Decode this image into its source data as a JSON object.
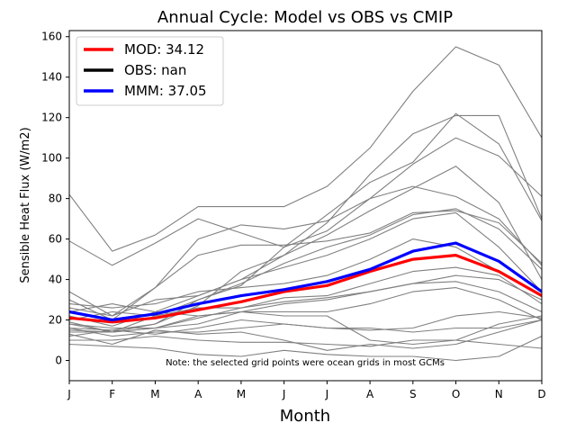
{
  "chart_data": {
    "type": "line",
    "title": "Annual Cycle: Model vs OBS vs CMIP",
    "xlabel": "Month",
    "ylabel": "Sensible Heat Flux (W/m2)",
    "categories": [
      "J",
      "F",
      "M",
      "A",
      "M",
      "J",
      "J",
      "A",
      "S",
      "O",
      "N",
      "D"
    ],
    "ylim": [
      -10,
      163
    ],
    "yticks": [
      0,
      20,
      40,
      60,
      80,
      100,
      120,
      140,
      160
    ],
    "grid": false,
    "note": "Note: the selected grid points were ocean grids in most GCMs",
    "legend": {
      "location": "top-left",
      "entries": [
        {
          "label": "MOD: 34.12",
          "color": "#ff0000"
        },
        {
          "label": "OBS: nan",
          "color": "#000000"
        },
        {
          "label": "MMM: 37.05",
          "color": "#0000ff"
        }
      ]
    },
    "colors": {
      "gcm": "#808080",
      "mod": "#ff0000",
      "obs": "#000000",
      "mmm": "#0000ff"
    },
    "series": [
      {
        "name": "MOD",
        "role": "mod",
        "values": [
          21,
          19,
          21,
          25,
          29,
          34,
          37,
          44,
          50,
          52,
          44,
          32
        ]
      },
      {
        "name": "MMM",
        "role": "mmm",
        "values": [
          24,
          20,
          23,
          28,
          32,
          35,
          39,
          45,
          54,
          58,
          49,
          34
        ]
      },
      {
        "name": "GCM-1",
        "role": "gcm",
        "values": [
          82,
          54,
          62,
          76,
          76,
          76,
          86,
          105,
          133,
          155,
          146,
          110
        ]
      },
      {
        "name": "GCM-2",
        "role": "gcm",
        "values": [
          59,
          47,
          58,
          70,
          63,
          56,
          64,
          80,
          97,
          110,
          101,
          81
        ]
      },
      {
        "name": "GCM-3",
        "role": "gcm",
        "values": [
          34,
          22,
          36,
          60,
          67,
          65,
          69,
          80,
          86,
          81,
          70,
          47
        ]
      },
      {
        "name": "GCM-4",
        "role": "gcm",
        "values": [
          30,
          20,
          36,
          52,
          57,
          57,
          59,
          63,
          73,
          74,
          68,
          48
        ]
      },
      {
        "name": "GCM-5",
        "role": "gcm",
        "values": [
          19,
          14,
          18,
          30,
          37,
          56,
          72,
          88,
          98,
          122,
          107,
          69
        ]
      },
      {
        "name": "GCM-6",
        "role": "gcm",
        "values": [
          26,
          22,
          30,
          32,
          40,
          52,
          68,
          92,
          112,
          121,
          121,
          70
        ]
      },
      {
        "name": "GCM-7",
        "role": "gcm",
        "values": [
          16,
          15,
          18,
          27,
          44,
          52,
          62,
          74,
          85,
          96,
          78,
          40
        ]
      },
      {
        "name": "GCM-8",
        "role": "gcm",
        "values": [
          18,
          14,
          22,
          30,
          38,
          48,
          56,
          62,
          72,
          75,
          65,
          45
        ]
      },
      {
        "name": "GCM-9",
        "role": "gcm",
        "values": [
          22,
          17,
          24,
          32,
          40,
          46,
          52,
          60,
          70,
          73,
          56,
          34
        ]
      },
      {
        "name": "GCM-10",
        "role": "gcm",
        "values": [
          28,
          26,
          28,
          34,
          36,
          38,
          42,
          50,
          60,
          56,
          44,
          32
        ]
      },
      {
        "name": "GCM-11",
        "role": "gcm",
        "values": [
          18,
          16,
          16,
          21,
          26,
          31,
          32,
          38,
          44,
          46,
          42,
          28
        ]
      },
      {
        "name": "GCM-12",
        "role": "gcm",
        "values": [
          20,
          24,
          22,
          26,
          26,
          29,
          31,
          34,
          38,
          39,
          34,
          24
        ]
      },
      {
        "name": "GCM-13",
        "role": "gcm",
        "values": [
          24,
          28,
          24,
          22,
          24,
          24,
          24,
          28,
          34,
          36,
          30,
          20
        ]
      },
      {
        "name": "GCM-14",
        "role": "gcm",
        "values": [
          14,
          14,
          16,
          18,
          24,
          22,
          22,
          10,
          8,
          10,
          18,
          22
        ]
      },
      {
        "name": "GCM-15",
        "role": "gcm",
        "values": [
          16,
          12,
          14,
          14,
          16,
          18,
          16,
          15,
          16,
          22,
          24,
          21
        ]
      },
      {
        "name": "GCM-16",
        "role": "gcm",
        "values": [
          13,
          8,
          15,
          13,
          14,
          10,
          5,
          8,
          6,
          8,
          14,
          20
        ]
      },
      {
        "name": "GCM-17",
        "role": "gcm",
        "values": [
          8,
          7,
          6,
          3,
          2,
          5,
          3,
          2,
          2,
          0,
          2,
          12
        ]
      },
      {
        "name": "GCM-18",
        "role": "gcm",
        "values": [
          10,
          10,
          12,
          10,
          9,
          9,
          8,
          7,
          10,
          10,
          8,
          6
        ]
      },
      {
        "name": "GCM-19",
        "role": "gcm",
        "values": [
          15,
          14,
          16,
          22,
          24,
          28,
          30,
          34,
          38,
          42,
          40,
          30
        ]
      },
      {
        "name": "GCM-20",
        "role": "gcm",
        "values": [
          12,
          15,
          13,
          16,
          20,
          18,
          16,
          16,
          14,
          16,
          16,
          20
        ]
      }
    ]
  }
}
